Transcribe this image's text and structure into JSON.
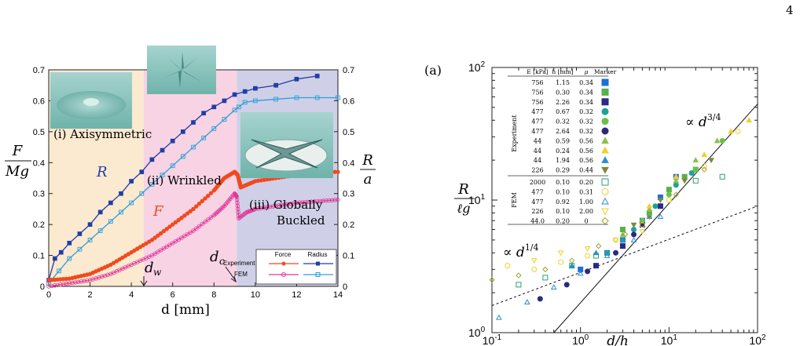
{
  "page_number": "4",
  "left_panel": {
    "y_left_label_num": "F",
    "y_left_label_den": "Mg",
    "y_right_label_num": "R",
    "y_right_label_den": "a",
    "x_label": "d [mm]",
    "regions": [
      {
        "label": "(i) Axisymmetric",
        "x_from": 0,
        "x_to": 4.6,
        "color": "#fbe9d0"
      },
      {
        "label": "(ii) Wrinkled",
        "x_from": 4.6,
        "x_to": 9.1,
        "color": "#f7d3e4"
      },
      {
        "label": "(iii) Globally Buckled",
        "x_from": 9.1,
        "x_to": 14,
        "color": "#cfd0e8"
      }
    ],
    "region_label_i": "(i) Axisymmetric",
    "region_label_ii": "(ii) Wrinkled",
    "region_label_iii_1": "(iii) Globally",
    "region_label_iii_2": "Buckled",
    "curve_label_R": "R",
    "curve_label_F": "F",
    "dw_label": "d",
    "dw_sub": "w",
    "dc_label": "d",
    "dc_sub": "c",
    "legend": {
      "col_force": "Force",
      "col_radius": "Radius",
      "row_experiment": "Experiment",
      "row_fem": "FEM"
    },
    "colors": {
      "R_exp": "#1f3fa6",
      "R_fem": "#2e9fd9",
      "F_exp": "#f04a1e",
      "F_fem": "#e0399a"
    }
  },
  "right_panel": {
    "panel_label": "(a)",
    "y_label_num": "R",
    "y_label_den": "ℓg",
    "x_label": "d/h",
    "slope_high": "∝ d3/4",
    "slope_low": "∝ d1/4",
    "table_headers": [
      "E [kPa]",
      "h [mm]",
      "μ",
      "Marker"
    ],
    "group_experiment": "Experiment",
    "group_fem": "FEM",
    "experiment_rows": [
      [
        "756",
        "1.15",
        "0.34"
      ],
      [
        "756",
        "0.30",
        "0.34"
      ],
      [
        "756",
        "2.26",
        "0.34"
      ],
      [
        "477",
        "0.67",
        "0.32"
      ],
      [
        "477",
        "0.32",
        "0.32"
      ],
      [
        "477",
        "2.64",
        "0.32"
      ],
      [
        "44",
        "0.59",
        "0.56"
      ],
      [
        "44",
        "0.24",
        "0.56"
      ],
      [
        "44",
        "1.94",
        "0.56"
      ],
      [
        "226",
        "0.29",
        "0.44"
      ]
    ],
    "fem_rows": [
      [
        "2000",
        "0.10",
        "0.20"
      ],
      [
        "477",
        "0.10",
        "0.31"
      ],
      [
        "477",
        "0.92",
        "1.00"
      ],
      [
        "226",
        "0.10",
        "2.00"
      ],
      [
        "44.0",
        "0.20",
        "0"
      ]
    ]
  },
  "chart_data": [
    {
      "type": "line",
      "xlabel": "d [mm]",
      "ylabel": "F/Mg",
      "ylabel_right": "R/a",
      "xlim": [
        0,
        14
      ],
      "ylim": [
        0,
        0.7
      ],
      "xticks": [
        "0",
        "2",
        "4",
        "6",
        "8",
        "10",
        "12",
        "14"
      ],
      "yticks": [
        "0",
        "0.1",
        "0.2",
        "0.3",
        "0.4",
        "0.5",
        "0.6",
        "0.7"
      ],
      "series": [
        {
          "name": "Experiment Radius",
          "axis": "right",
          "color": "#1f3fa6",
          "x": [
            0,
            0.3,
            0.6,
            1,
            1.5,
            2,
            2.5,
            3,
            3.5,
            4,
            4.5,
            5,
            5.5,
            6,
            6.5,
            7,
            7.5,
            8,
            8.5,
            9,
            9.5,
            10,
            11,
            12,
            13
          ],
          "y": [
            0.02,
            0.09,
            0.11,
            0.14,
            0.17,
            0.2,
            0.24,
            0.27,
            0.3,
            0.34,
            0.37,
            0.41,
            0.44,
            0.47,
            0.5,
            0.53,
            0.56,
            0.58,
            0.6,
            0.62,
            0.63,
            0.64,
            0.65,
            0.67,
            0.68
          ]
        },
        {
          "name": "FEM Radius",
          "axis": "right",
          "color": "#2e9fd9",
          "x": [
            0,
            0.5,
            1,
            1.5,
            2,
            2.5,
            3,
            3.5,
            4,
            4.5,
            5,
            5.5,
            6,
            6.5,
            7,
            7.5,
            8,
            8.5,
            9,
            9.2,
            9.5,
            10,
            11,
            12,
            13,
            14
          ],
          "y": [
            0.01,
            0.05,
            0.09,
            0.12,
            0.15,
            0.18,
            0.21,
            0.24,
            0.27,
            0.3,
            0.33,
            0.36,
            0.39,
            0.42,
            0.45,
            0.48,
            0.51,
            0.54,
            0.57,
            0.58,
            0.595,
            0.6,
            0.605,
            0.61,
            0.61,
            0.61
          ]
        },
        {
          "name": "Experiment Force",
          "axis": "left",
          "color": "#f04a1e",
          "x": [
            0,
            1,
            2,
            3,
            4,
            5,
            6,
            7,
            8,
            8.5,
            9,
            9.15,
            9.3,
            10,
            11,
            12,
            13,
            14
          ],
          "y": [
            0.02,
            0.025,
            0.04,
            0.07,
            0.11,
            0.15,
            0.2,
            0.25,
            0.31,
            0.35,
            0.37,
            0.36,
            0.32,
            0.34,
            0.35,
            0.36,
            0.37,
            0.37
          ]
        },
        {
          "name": "FEM Force",
          "axis": "left",
          "color": "#e0399a",
          "x": [
            0,
            1,
            2,
            3,
            4,
            5,
            6,
            7,
            8,
            8.5,
            9,
            9.1,
            9.2,
            9.6,
            10,
            11,
            12,
            13,
            14
          ],
          "y": [
            0,
            0.01,
            0.02,
            0.04,
            0.07,
            0.1,
            0.14,
            0.18,
            0.23,
            0.26,
            0.3,
            0.29,
            0.22,
            0.24,
            0.25,
            0.26,
            0.27,
            0.275,
            0.28
          ]
        }
      ]
    },
    {
      "type": "scatter",
      "xlabel": "d/h",
      "ylabel": "R/ℓg",
      "x_scale": "log",
      "y_scale": "log",
      "xlim": [
        0.1,
        100
      ],
      "ylim": [
        1,
        100
      ],
      "xticks": [
        "10-1",
        "100",
        "101",
        "102"
      ],
      "yticks": [
        "100",
        "101",
        "102"
      ],
      "lines": [
        {
          "name": "∝ d3/4",
          "style": "solid",
          "points": [
            [
              0.5,
              1
            ],
            [
              100,
              53
            ]
          ]
        },
        {
          "name": "∝ d1/4",
          "style": "dashed",
          "points": [
            [
              0.1,
              1.6
            ],
            [
              100,
              9.0
            ]
          ]
        }
      ],
      "series": [
        {
          "marker": "square",
          "filled": true,
          "color": "#1f6fd9",
          "x": [
            1,
            2,
            3,
            5,
            8,
            12
          ],
          "y": [
            3.0,
            4.0,
            5.0,
            7.0,
            10.5,
            15
          ]
        },
        {
          "marker": "square",
          "filled": true,
          "color": "#5ab04a",
          "x": [
            3,
            6,
            10,
            15,
            20
          ],
          "y": [
            6.0,
            8.0,
            12,
            15,
            17
          ]
        },
        {
          "marker": "square",
          "filled": true,
          "color": "#2a2a8a",
          "x": [
            1.5,
            3,
            5,
            8
          ],
          "y": [
            3.2,
            4.5,
            6.5,
            9.0
          ]
        },
        {
          "marker": "circle",
          "filled": true,
          "color": "#1aa39a",
          "x": [
            2,
            4,
            7,
            12,
            18
          ],
          "y": [
            4.0,
            6.0,
            9.0,
            13,
            16
          ]
        },
        {
          "marker": "circle",
          "filled": true,
          "color": "#6cc04a",
          "x": [
            5,
            10,
            20,
            40
          ],
          "y": [
            7.0,
            11,
            17,
            28
          ]
        },
        {
          "marker": "circle",
          "filled": true,
          "color": "#2a2a7a",
          "x": [
            0.35,
            0.7,
            1.2,
            2.5,
            4
          ],
          "y": [
            1.8,
            2.3,
            2.9,
            4.0,
            5.5
          ]
        },
        {
          "marker": "triangle",
          "filled": true,
          "color": "#8fbf4a",
          "x": [
            3,
            6,
            12,
            20,
            35
          ],
          "y": [
            5.5,
            8.5,
            14,
            20,
            28
          ]
        },
        {
          "marker": "triangle",
          "filled": true,
          "color": "#f0d02a",
          "x": [
            6,
            12,
            25,
            50,
            80
          ],
          "y": [
            9,
            15,
            22,
            33,
            40
          ]
        },
        {
          "marker": "triangle",
          "filled": true,
          "color": "#2b8fd0",
          "x": [
            0.8,
            1.5,
            3,
            6
          ],
          "y": [
            3.2,
            4.0,
            5.0,
            7.5
          ]
        },
        {
          "marker": "triangle-down",
          "filled": true,
          "color": "#7a8a3a",
          "x": [
            4,
            8,
            15,
            30
          ],
          "y": [
            6.5,
            10,
            14,
            20
          ]
        },
        {
          "marker": "square",
          "filled": false,
          "color": "#2aa07a",
          "x": [
            0.2,
            0.4,
            0.8,
            1.5,
            3,
            20,
            40
          ],
          "y": [
            2.3,
            2.6,
            3.2,
            3.8,
            5.0,
            14,
            15
          ]
        },
        {
          "marker": "circle",
          "filled": false,
          "color": "#f0d02a",
          "x": [
            0.15,
            0.3,
            0.6,
            1.2,
            2.5,
            5,
            10,
            25,
            60
          ],
          "y": [
            3.2,
            3.0,
            3.4,
            3.8,
            5.0,
            6.5,
            10,
            18,
            33
          ]
        },
        {
          "marker": "triangle",
          "filled": false,
          "color": "#2b8fd0",
          "x": [
            0.12,
            0.25,
            0.5,
            1,
            2,
            4,
            8
          ],
          "y": [
            1.3,
            1.7,
            2.2,
            2.8,
            3.8,
            5.0,
            7.5
          ]
        },
        {
          "marker": "triangle-down",
          "filled": false,
          "color": "#f0d02a",
          "x": [
            0.3,
            0.6,
            1.2,
            2.5,
            5
          ],
          "y": [
            3.5,
            4.0,
            4.3,
            5.0,
            5.8
          ]
        },
        {
          "marker": "diamond",
          "filled": false,
          "color": "#a0a030",
          "x": [
            0.1,
            0.2,
            0.4,
            0.8,
            1.6,
            3.2,
            6,
            12,
            25
          ],
          "y": [
            2.5,
            2.7,
            3.0,
            3.5,
            4.5,
            5.5,
            7.5,
            11,
            17
          ]
        }
      ]
    }
  ]
}
